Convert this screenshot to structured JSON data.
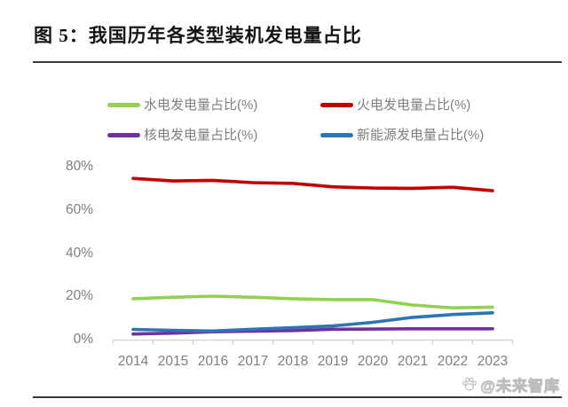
{
  "figure": {
    "caption": "图 5：我国历年各类型装机发电量占比",
    "watermark": "@未来智库"
  },
  "chart_data": {
    "type": "line",
    "title": "图 5：我国历年各类型装机发电量占比",
    "x": [
      "2014",
      "2015",
      "2016",
      "2017",
      "2018",
      "2019",
      "2020",
      "2021",
      "2022",
      "2023"
    ],
    "series": [
      {
        "key": "hydro",
        "name": "水电发电量占比(%)",
        "color": "#92D050",
        "values": [
          18.9,
          19.6,
          20.1,
          19.6,
          18.9,
          18.5,
          18.5,
          16.0,
          14.7,
          15.0
        ]
      },
      {
        "key": "thermal",
        "name": "火电发电量占比(%)",
        "color": "#C00000",
        "values": [
          74.6,
          73.4,
          73.7,
          72.6,
          72.3,
          70.7,
          70.1,
          70.0,
          70.5,
          68.9
        ]
      },
      {
        "key": "nuclear",
        "name": "核电发电量占比(%)",
        "color": "#7030A0",
        "values": [
          2.6,
          3.0,
          3.6,
          3.9,
          4.2,
          4.8,
          4.9,
          5.0,
          5.0,
          5.0
        ]
      },
      {
        "key": "new_energy",
        "name": "新能源发电量占比(%)",
        "color": "#2E75B6",
        "values": [
          4.7,
          4.3,
          4.0,
          4.8,
          5.5,
          6.3,
          8.0,
          10.3,
          11.6,
          12.4
        ]
      }
    ],
    "xlabel": "",
    "ylabel": "",
    "ylim": [
      0,
      80
    ],
    "yticks": [
      "0%",
      "20%",
      "40%",
      "60%",
      "80%"
    ],
    "ytick_values": [
      0,
      20,
      40,
      60,
      80
    ],
    "grid": false,
    "legend_position": "top",
    "axis_text_color": "#7E7E7E",
    "axis_line_color": "#D6D6D6"
  }
}
